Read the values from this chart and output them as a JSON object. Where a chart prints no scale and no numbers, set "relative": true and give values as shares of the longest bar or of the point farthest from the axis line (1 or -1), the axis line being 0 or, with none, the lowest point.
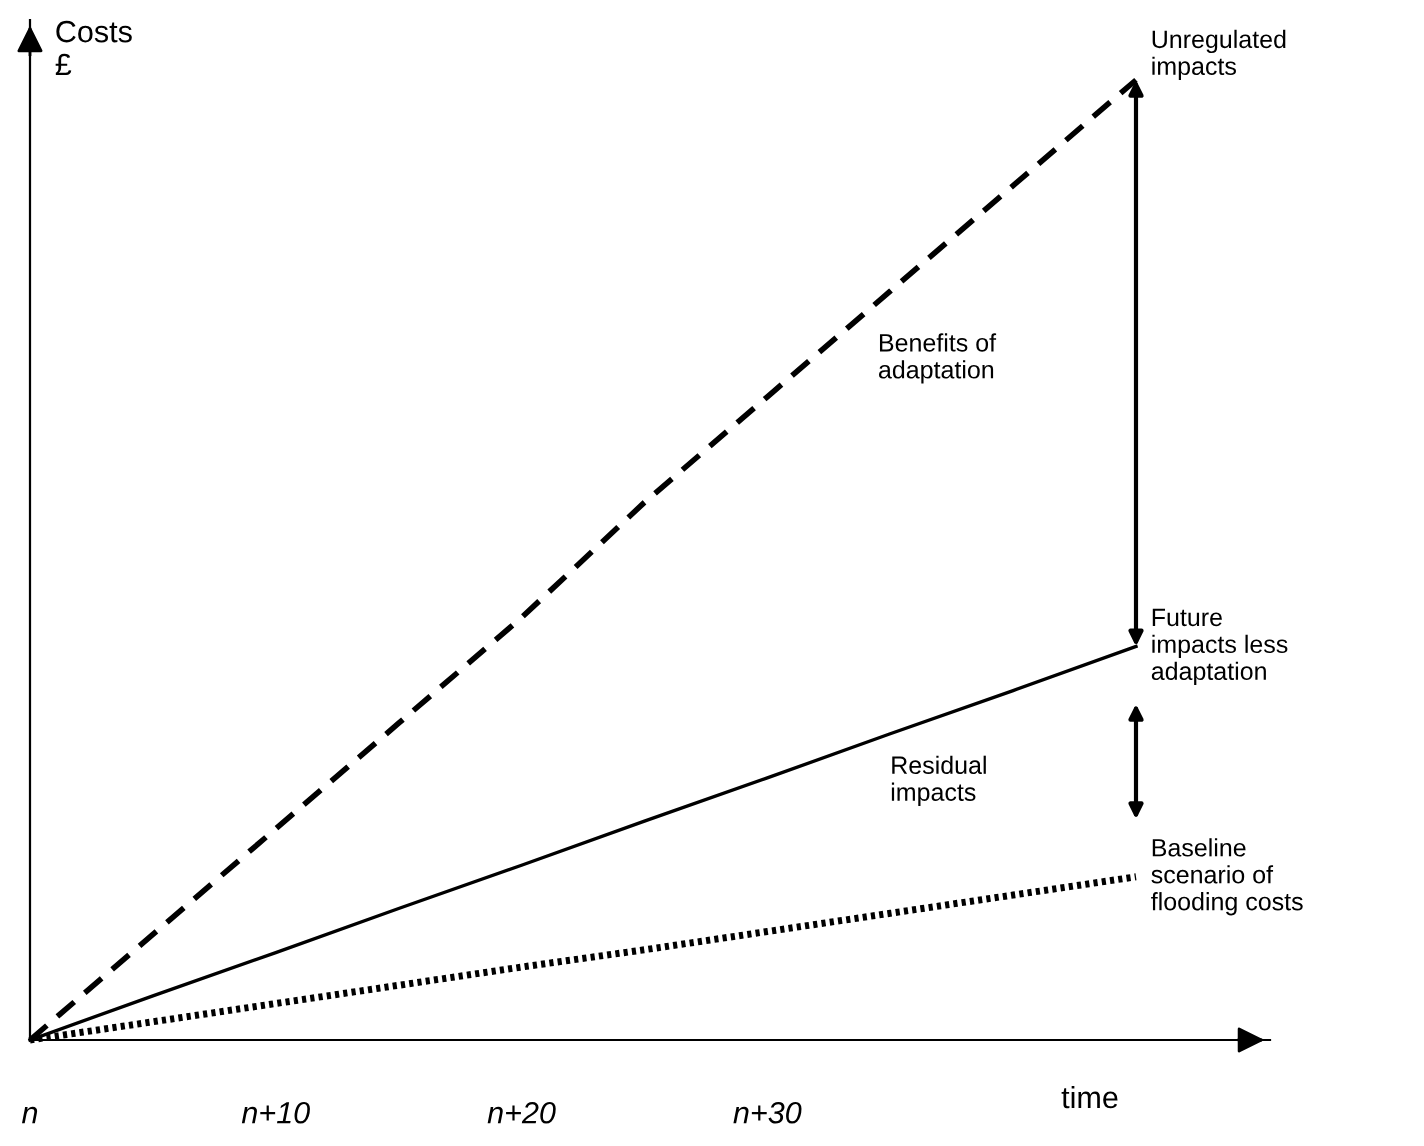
{
  "chart_data": {
    "type": "line",
    "relative": true,
    "ylabel": "Costs\n£",
    "xlabel": "time",
    "categories": [
      "n",
      null,
      "n+10",
      null,
      "n+20",
      null,
      "n+30",
      null,
      null,
      null
    ],
    "series": [
      {
        "name": "Unregulated\nimpacts",
        "color": "#000000",
        "values": [
          0,
          0.11,
          0.22,
          0.33,
          0.44,
          0.56,
          0.67,
          0.78,
          0.89,
          1
        ],
        "line_style": "dashed"
      },
      {
        "name": "Future\nimpacts less\nadaptation",
        "color": "#000000",
        "values": [
          0,
          0.046,
          0.091,
          0.137,
          0.182,
          0.228,
          0.273,
          0.319,
          0.364,
          0.41
        ],
        "line_style": "solid"
      },
      {
        "name": "Baseline\nscenario of\nflooding costs",
        "color": "#000000",
        "values": [
          0,
          0.019,
          0.038,
          0.057,
          0.076,
          0.094,
          0.113,
          0.132,
          0.151,
          0.17
        ],
        "line_style": "dotted"
      }
    ],
    "annotations": [
      "Benefits of\nadaptation",
      "Residual\nimpacts"
    ],
    "grid": false,
    "marker": "none"
  }
}
